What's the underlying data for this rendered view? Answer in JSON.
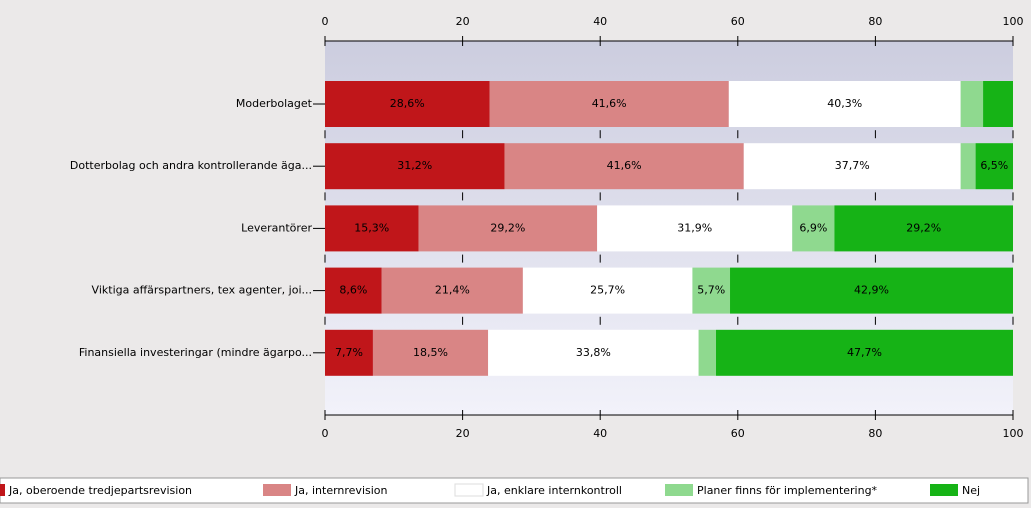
{
  "chart_data": {
    "type": "bar",
    "orientation": "horizontal",
    "stack": "percent",
    "categories": [
      "Moderbolaget",
      "Dotterbolag och andra kontrollerande äga...",
      "Leverantörer",
      "Viktiga affärspartners, tex agenter, joi...",
      "Finansiella investeringar (mindre ägarpo..."
    ],
    "series": [
      {
        "name": "Ja, oberoende tredjepartsrevision",
        "color": "#c0161a",
        "values": [
          28.6,
          31.2,
          15.3,
          8.6,
          7.7
        ],
        "value_labels": [
          "28,6%",
          "31,2%",
          "15,3%",
          "8,6%",
          "7,7%"
        ]
      },
      {
        "name": "Ja, internrevision",
        "color": "#d98585",
        "values": [
          41.6,
          41.6,
          29.2,
          21.4,
          18.5
        ],
        "value_labels": [
          "41,6%",
          "41,6%",
          "29,2%",
          "21,4%",
          "18,5%"
        ]
      },
      {
        "name": "Ja, enklare internkontroll",
        "color": "#ffffff",
        "values": [
          40.3,
          37.7,
          31.9,
          25.7,
          33.8
        ],
        "value_labels": [
          "40,3%",
          "37,7%",
          "31,9%",
          "25,7%",
          "33,8%"
        ]
      },
      {
        "name": "Planer finns för implementering*",
        "color": "#8fd98f",
        "values": [
          3.9,
          2.6,
          6.9,
          5.7,
          2.8
        ],
        "value_labels": [
          null,
          null,
          "6,9%",
          "5,7%",
          null
        ]
      },
      {
        "name": "Nej",
        "color": "#16b316",
        "values": [
          5.2,
          6.5,
          29.2,
          42.9,
          47.7
        ],
        "value_labels": [
          null,
          "6,5%",
          "29,2%",
          "42,9%",
          "47,7%"
        ]
      }
    ],
    "xlim": [
      0,
      100
    ],
    "xticks": [
      0,
      20,
      40,
      60,
      80,
      100
    ]
  }
}
